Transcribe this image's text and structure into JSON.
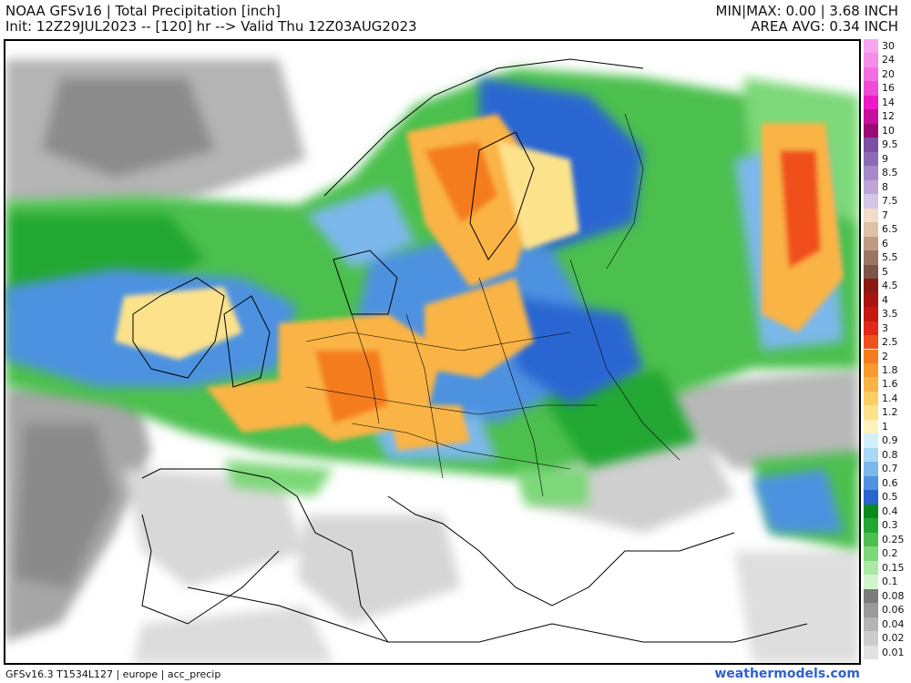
{
  "header": {
    "line1_left": "NOAA GFSv16 | Total Precipitation [inch]",
    "line2_left": "Init: 12Z29JUL2023 -- [120] hr --> Valid Thu 12Z03AUG2023",
    "line1_right": "MIN|MAX: 0.00 | 3.68 INCH",
    "line2_right": "AREA AVG: 0.34 INCH"
  },
  "legend": {
    "levels": [
      {
        "label": "30",
        "color": "#f7a6f0"
      },
      {
        "label": "24",
        "color": "#f58ee8"
      },
      {
        "label": "20",
        "color": "#f36ee0"
      },
      {
        "label": "16",
        "color": "#f14ad6"
      },
      {
        "label": "14",
        "color": "#ee18c6"
      },
      {
        "label": "12",
        "color": "#c80e9c"
      },
      {
        "label": "10",
        "color": "#9a0a74"
      },
      {
        "label": "9.5",
        "color": "#7a4fa4"
      },
      {
        "label": "9",
        "color": "#8c6ab6"
      },
      {
        "label": "8.5",
        "color": "#a58ac8"
      },
      {
        "label": "8",
        "color": "#bba6d6"
      },
      {
        "label": "7.5",
        "color": "#d3c6e6"
      },
      {
        "label": "7",
        "color": "#f2ddc9"
      },
      {
        "label": "6.5",
        "color": "#dfc0a8"
      },
      {
        "label": "6",
        "color": "#c09a82"
      },
      {
        "label": "5.5",
        "color": "#9c7664"
      },
      {
        "label": "5",
        "color": "#7a5548"
      },
      {
        "label": "4.5",
        "color": "#8a1a12"
      },
      {
        "label": "4",
        "color": "#a8140e"
      },
      {
        "label": "3.5",
        "color": "#c61a10"
      },
      {
        "label": "3",
        "color": "#e22818"
      },
      {
        "label": "2.5",
        "color": "#f0501c"
      },
      {
        "label": "2",
        "color": "#f57c1e"
      },
      {
        "label": "1.8",
        "color": "#f89a2c"
      },
      {
        "label": "1.6",
        "color": "#fab444"
      },
      {
        "label": "1.4",
        "color": "#fcce66"
      },
      {
        "label": "1.2",
        "color": "#fde28c"
      },
      {
        "label": "1",
        "color": "#fff2bc"
      },
      {
        "label": "0.9",
        "color": "#d2f0fa"
      },
      {
        "label": "0.8",
        "color": "#a8d8f4"
      },
      {
        "label": "0.7",
        "color": "#7cb8ec"
      },
      {
        "label": "0.6",
        "color": "#4e92e0"
      },
      {
        "label": "0.5",
        "color": "#2a66d2"
      },
      {
        "label": "0.4",
        "color": "#0a8a1c"
      },
      {
        "label": "0.3",
        "color": "#22a832"
      },
      {
        "label": "0.25",
        "color": "#4cc04e"
      },
      {
        "label": "0.2",
        "color": "#7cd878"
      },
      {
        "label": "0.15",
        "color": "#a8eaa2"
      },
      {
        "label": "0.1",
        "color": "#d2f6cc"
      },
      {
        "label": "0.08",
        "color": "#7c7c7c"
      },
      {
        "label": "0.06",
        "color": "#9a9a9a"
      },
      {
        "label": "0.04",
        "color": "#b4b4b4"
      },
      {
        "label": "0.02",
        "color": "#cccccc"
      },
      {
        "label": "0.01",
        "color": "#e2e2e2"
      }
    ]
  },
  "footer": {
    "left": "GFSv16.3 T1534L127 | europe | acc_precip",
    "right": "weathermodels.com"
  }
}
